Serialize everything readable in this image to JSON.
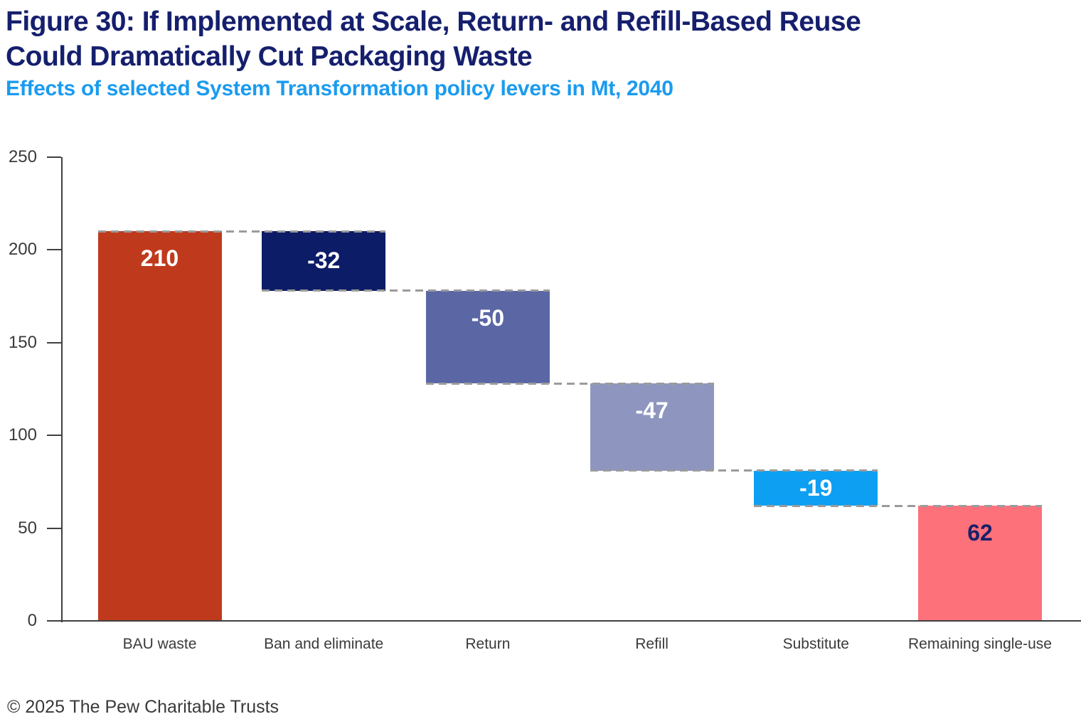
{
  "header": {
    "title_line1": "Figure 30: If Implemented at Scale, Return- and Refill-Based Reuse",
    "title_line2": "Could Dramatically Cut Packaging Waste",
    "subtitle": "Effects of selected System Transformation policy levers in Mt, 2040"
  },
  "footer": {
    "copyright": "© 2025 The Pew Charitable Trusts"
  },
  "colors": {
    "title": "#151f6d",
    "subtitle": "#1b9bef",
    "axis": "#404040",
    "tick_label": "#3a3a3a",
    "x_label": "#3a3a3a",
    "connector": "#9b9b9b"
  },
  "chart_data": {
    "type": "bar",
    "subtype": "waterfall",
    "title": "Figure 30: If Implemented at Scale, Return- and Refill-Based Reuse Could Dramatically Cut Packaging Waste",
    "subtitle": "Effects of selected System Transformation policy levers in Mt, 2040",
    "unit": "Mt",
    "year": 2040,
    "ylim": [
      0,
      250
    ],
    "yticks": [
      0,
      50,
      100,
      150,
      200,
      250
    ],
    "grid": false,
    "legend": false,
    "categories": [
      "BAU waste",
      "Ban and eliminate",
      "Return",
      "Refill",
      "Substitute",
      "Remaining single-use"
    ],
    "bars": [
      {
        "category": "BAU waste",
        "label": "210",
        "delta": 210,
        "start": 0,
        "end": 210,
        "color": "#bf3a1d",
        "label_color": "#ffffff"
      },
      {
        "category": "Ban and eliminate",
        "label": "-32",
        "delta": -32,
        "start": 210,
        "end": 178,
        "color": "#0d1c67",
        "label_color": "#ffffff"
      },
      {
        "category": "Return",
        "label": "-50",
        "delta": -50,
        "start": 178,
        "end": 128,
        "color": "#5b67a4",
        "label_color": "#ffffff"
      },
      {
        "category": "Refill",
        "label": "-47",
        "delta": -47,
        "start": 128,
        "end": 81,
        "color": "#8e96c0",
        "label_color": "#ffffff"
      },
      {
        "category": "Substitute",
        "label": "-19",
        "delta": -19,
        "start": 81,
        "end": 62,
        "color": "#0c9ff2",
        "label_color": "#ffffff"
      },
      {
        "category": "Remaining single-use",
        "label": "62",
        "delta": 62,
        "start": 0,
        "end": 62,
        "color": "#fd717a",
        "label_color": "#1a2068"
      }
    ]
  }
}
